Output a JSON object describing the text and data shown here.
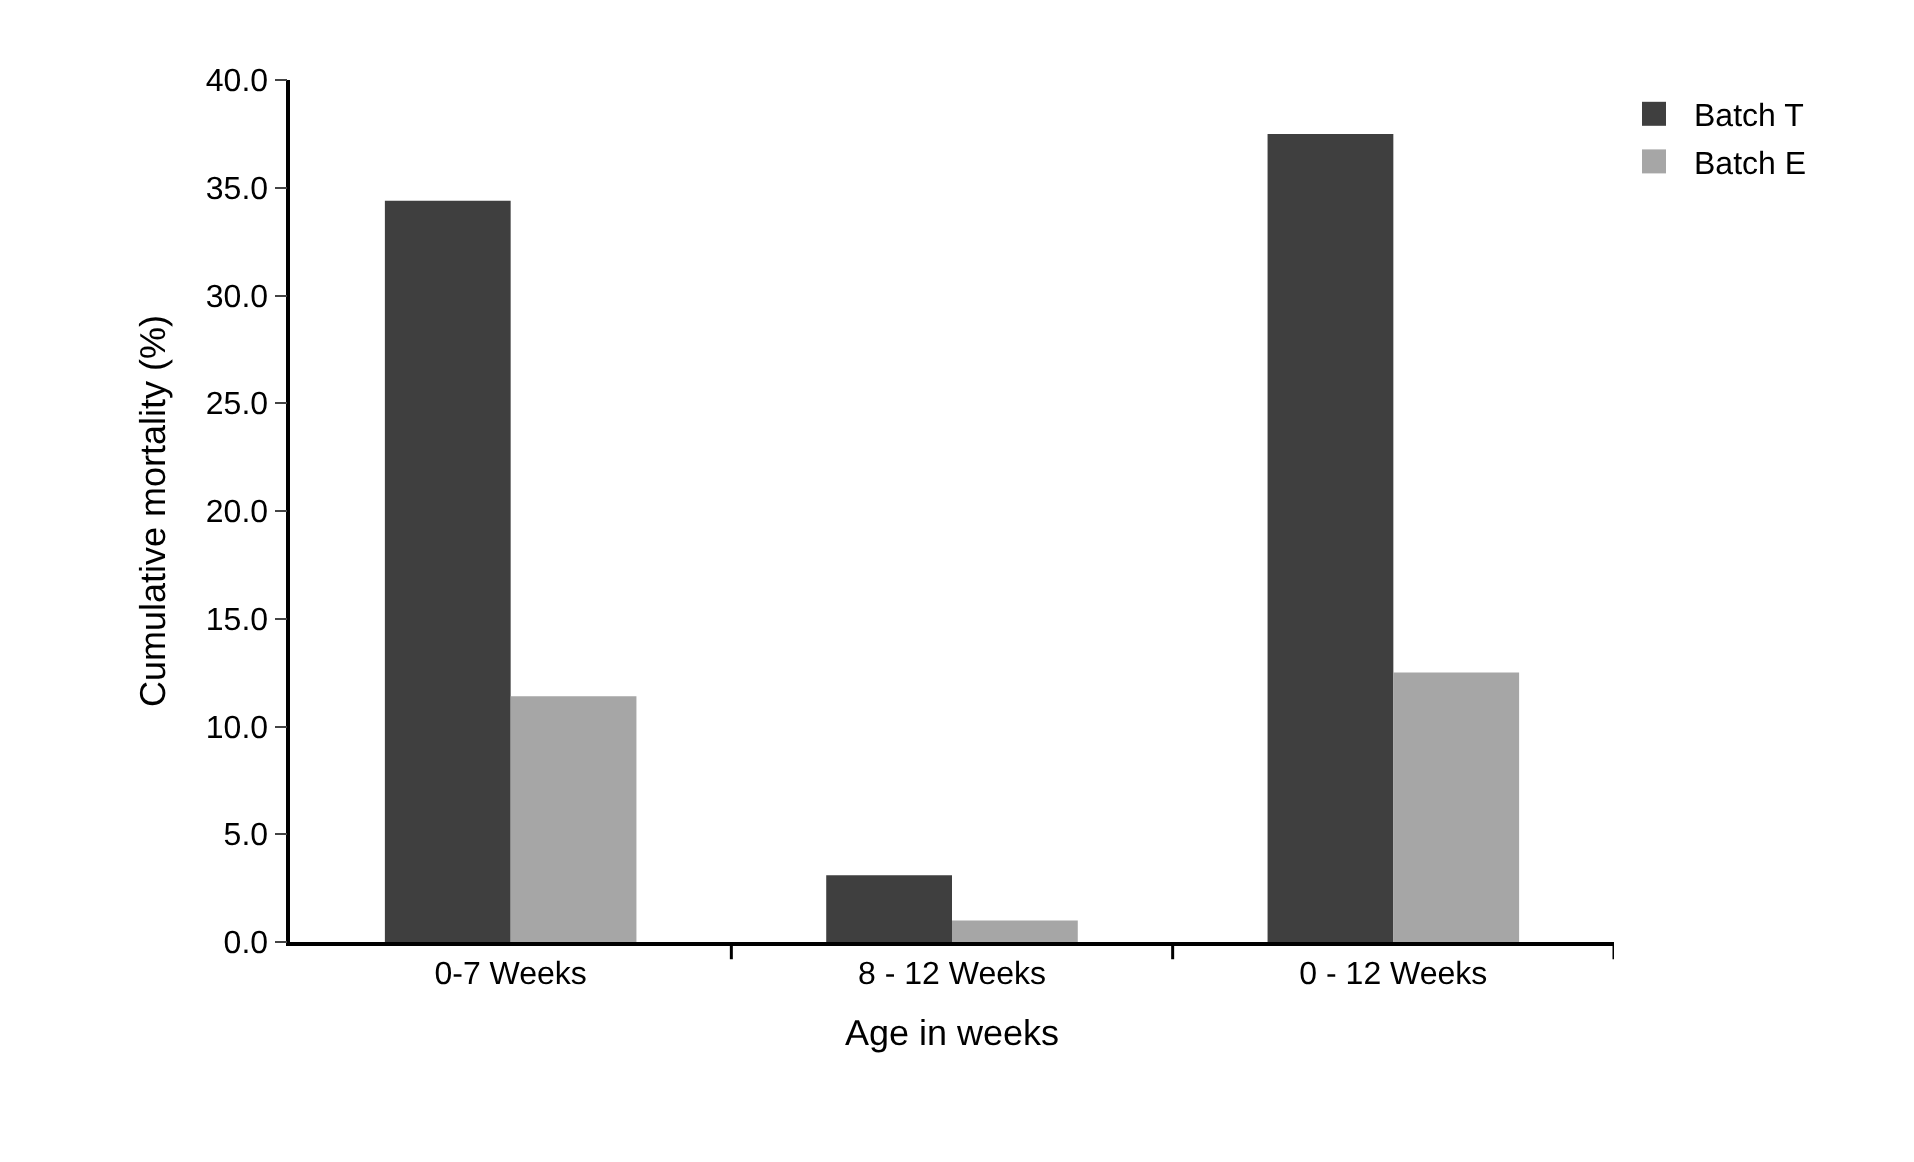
{
  "chart_data": {
    "type": "bar",
    "xlabel": "Age in weeks",
    "ylabel": "Cumulative mortality (%)",
    "categories": [
      "0-7 Weeks",
      "8 - 12 Weeks",
      "0 - 12 Weeks"
    ],
    "series": [
      {
        "name": "Batch T",
        "color": "#3f3f3f",
        "values": [
          34.4,
          3.1,
          37.5
        ]
      },
      {
        "name": "Batch E",
        "color": "#a6a6a6",
        "values": [
          11.4,
          1.0,
          12.5
        ]
      }
    ],
    "ylim": [
      0,
      40
    ],
    "yticks": [
      {
        "value": 0,
        "label": "0.0"
      },
      {
        "value": 5,
        "label": "5.0"
      },
      {
        "value": 10,
        "label": "10.0"
      },
      {
        "value": 15,
        "label": "15.0"
      },
      {
        "value": 20,
        "label": "20.0"
      },
      {
        "value": 25,
        "label": "25.0"
      },
      {
        "value": 30,
        "label": "30.0"
      },
      {
        "value": 35,
        "label": "35.0"
      },
      {
        "value": 40,
        "label": "40.0"
      }
    ],
    "grid": false,
    "legend": "top right"
  }
}
